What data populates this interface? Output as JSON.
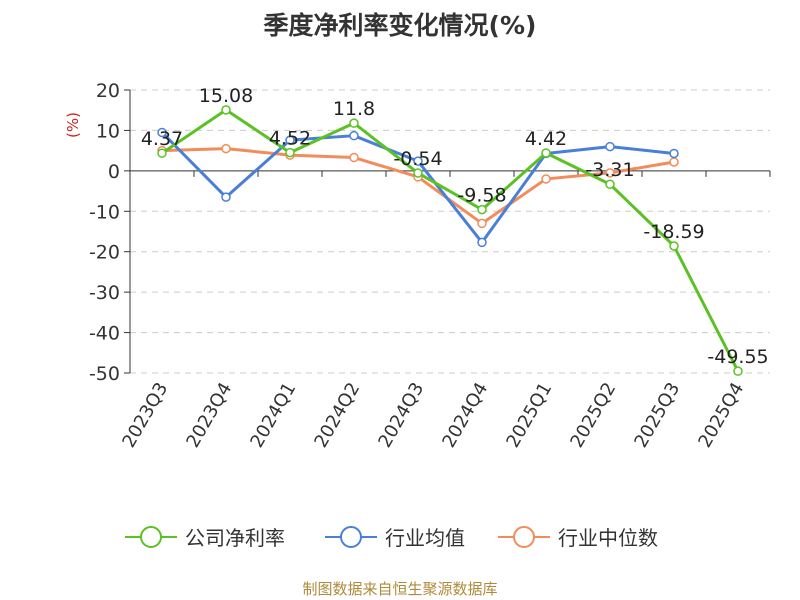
{
  "title": "季度净利率变化情况(%)",
  "source": "制图数据来自恒生聚源数据库",
  "chart_data": {
    "type": "line",
    "y_unit": "(%)",
    "categories": [
      "2023Q3",
      "2023Q4",
      "2024Q1",
      "2024Q2",
      "2024Q3",
      "2024Q4",
      "2025Q1",
      "2025Q2",
      "2025Q3",
      "2025Q4"
    ],
    "ylim": [
      -50,
      20
    ],
    "yticks": [
      20,
      10,
      0,
      -10,
      -20,
      -30,
      -40,
      -50
    ],
    "grid": true,
    "legend_position": "bottom",
    "series": [
      {
        "name": "公司净利率",
        "color": "#5bc125",
        "values": [
          4.37,
          15.08,
          4.52,
          11.8,
          -0.54,
          -9.58,
          4.42,
          -3.31,
          -18.59,
          -49.55
        ],
        "labels": [
          "4.37",
          "15.08",
          "4.52",
          "11.8",
          "-0.54",
          "-9.58",
          "4.42",
          "-3.31",
          "-18.59",
          "-49.55"
        ]
      },
      {
        "name": "行业均值",
        "color": "#4a7fd8",
        "values": [
          9.5,
          -6.5,
          7.6,
          8.7,
          2.4,
          -17.7,
          4.3,
          6.0,
          4.3,
          null
        ]
      },
      {
        "name": "行业中位数",
        "color": "#f28c5a",
        "values": [
          5.0,
          5.5,
          3.9,
          3.3,
          -1.5,
          -13.0,
          -2.0,
          -0.5,
          2.2,
          null
        ]
      }
    ]
  }
}
